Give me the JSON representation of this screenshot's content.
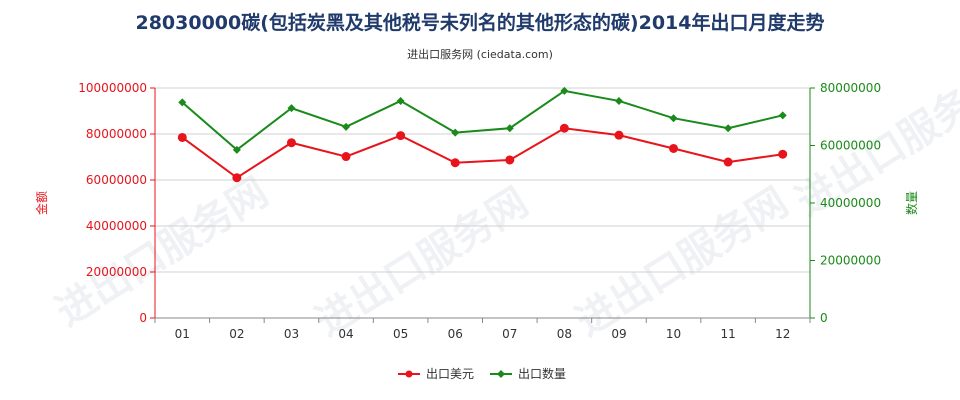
{
  "chart_data": {
    "type": "line",
    "title": "28030000碳(包括炭黑及其他税号未列名的其他形态的碳)2014年出口月度走势",
    "subtitle": "进出口服务网 (ciedata.com)",
    "categories": [
      "01",
      "02",
      "03",
      "04",
      "05",
      "06",
      "07",
      "08",
      "09",
      "10",
      "11",
      "12"
    ],
    "y_left": {
      "label": "金额",
      "ticks": [
        "0",
        "20000000",
        "40000000",
        "60000000",
        "80000000",
        "100000000"
      ],
      "range": [
        0,
        100000000
      ],
      "color": "#e8141b"
    },
    "y_right": {
      "label": "数量",
      "ticks": [
        "0",
        "20000000",
        "40000000",
        "60000000",
        "80000000"
      ],
      "range": [
        0,
        80000000
      ],
      "color": "#1a8a1a"
    },
    "series": [
      {
        "name": "出口美元",
        "axis": "left",
        "color": "#e8141b",
        "values": [
          78500000,
          61000000,
          76200000,
          70200000,
          79300000,
          67500000,
          68700000,
          82500000,
          79500000,
          73700000,
          67800000,
          71200000
        ]
      },
      {
        "name": "出口数量",
        "axis": "right",
        "color": "#1a8a1a",
        "values": [
          75000000,
          58500000,
          73000000,
          66500000,
          75500000,
          64500000,
          66000000,
          79000000,
          75500000,
          69500000,
          66000000,
          70500000
        ]
      }
    ],
    "legend_position": "bottom",
    "watermark": "进出口服务网"
  }
}
